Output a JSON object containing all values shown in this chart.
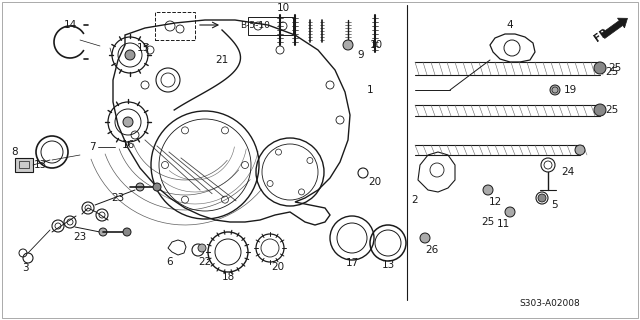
{
  "background_color": "#ffffff",
  "line_color": "#1a1a1a",
  "text_color": "#1a1a1a",
  "diagram_code": "S303-A02008",
  "font_size": 7.5,
  "fig_width": 6.4,
  "fig_height": 3.2,
  "dpi": 100
}
